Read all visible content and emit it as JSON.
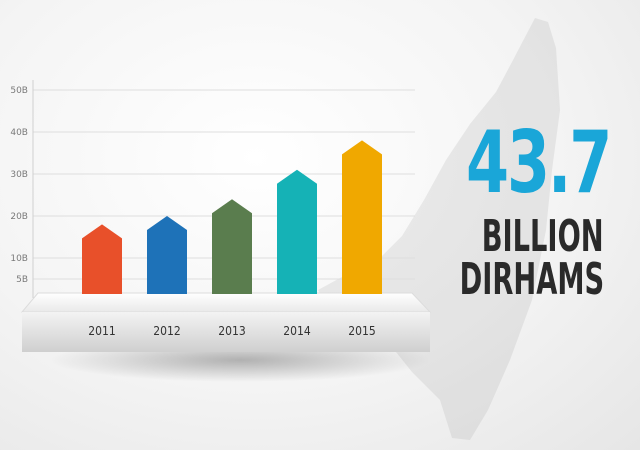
{
  "headline": {
    "value": "43.7",
    "unit_line_1": "BILLION",
    "unit_line_2": "DIRHAMS"
  },
  "colors": {
    "value_text": "#1aa6d8",
    "unit_text": "#2a2a2a"
  },
  "chart_data": {
    "type": "bar",
    "categories": [
      "2011",
      "2012",
      "2013",
      "2014",
      "2015"
    ],
    "values": [
      18,
      20,
      24,
      31,
      38
    ],
    "bar_colors": [
      "#e8502a",
      "#1e72b8",
      "#5a7d4e",
      "#15b2b6",
      "#f0a800"
    ],
    "y_ticks": [
      "5B",
      "10B",
      "20B",
      "30B",
      "40B",
      "50B"
    ],
    "y_tick_values": [
      5,
      10,
      20,
      30,
      40,
      50
    ],
    "ylim": [
      0,
      50
    ],
    "grid": true,
    "title": "",
    "xlabel": "",
    "ylabel": ""
  }
}
